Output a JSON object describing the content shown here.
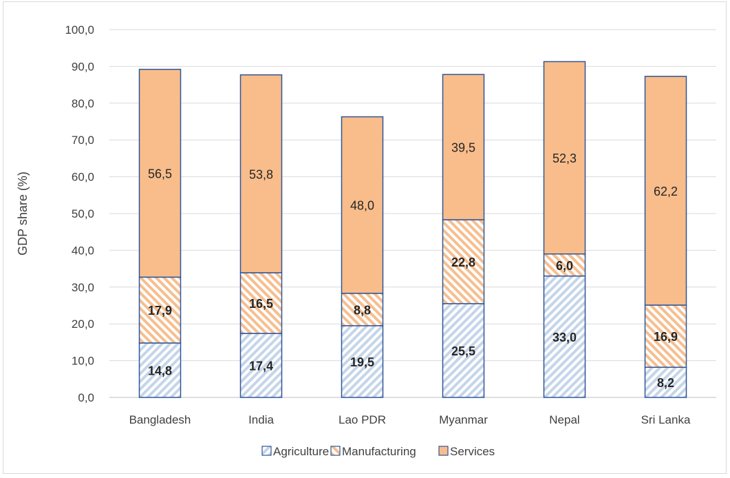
{
  "chart_data": {
    "type": "bar",
    "stacked": true,
    "title": "",
    "xlabel": "",
    "ylabel": "GDP share (%)",
    "ylim": [
      0,
      100
    ],
    "ytick_step": 10,
    "ytick_labels": [
      "0,0",
      "10,0",
      "20,0",
      "30,0",
      "40,0",
      "50,0",
      "60,0",
      "70,0",
      "80,0",
      "90,0",
      "100,0"
    ],
    "grid": true,
    "legend_position": "bottom",
    "categories": [
      "Bangladesh",
      "India",
      "Lao PDR",
      "Myanmar",
      "Nepal",
      "Sri Lanka"
    ],
    "series": [
      {
        "name": "Agriculture",
        "values": [
          14.8,
          17.4,
          19.5,
          25.5,
          33.0,
          8.2
        ],
        "labels": [
          "14,8",
          "17,4",
          "19,5",
          "25,5",
          "33,0",
          "8,2"
        ],
        "color": "#c5d5ea",
        "stroke": "#2f5597",
        "pattern": "diagonal-down"
      },
      {
        "name": "Manufacturing",
        "values": [
          17.9,
          16.5,
          8.8,
          22.8,
          6.0,
          16.9
        ],
        "labels": [
          "17,9",
          "16,5",
          "8,8",
          "22,8",
          "6,0",
          "16,9"
        ],
        "color": "#f6be8f",
        "stroke": "#2f5597",
        "pattern": "diagonal-up"
      },
      {
        "name": "Services",
        "values": [
          56.5,
          53.8,
          48.0,
          39.5,
          52.3,
          62.2
        ],
        "labels": [
          "56,5",
          "53,8",
          "48,0",
          "39,5",
          "52,3",
          "62,2"
        ],
        "color": "#f8bd8b",
        "stroke": "#2f5597",
        "pattern": "solid"
      }
    ]
  }
}
